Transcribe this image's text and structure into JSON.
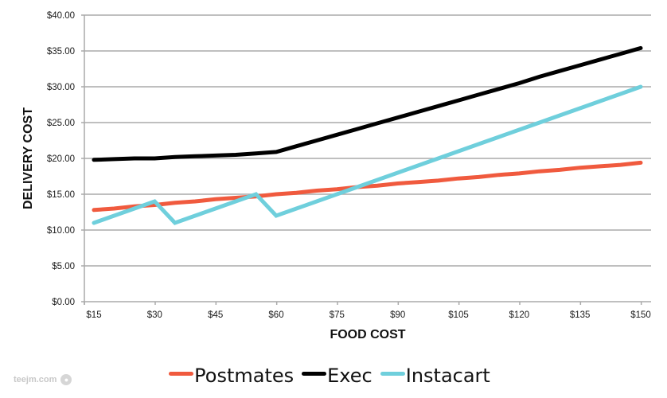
{
  "chart_data": {
    "type": "line",
    "title": "",
    "xlabel": "FOOD COST",
    "ylabel": "DELIVERY COST",
    "x": [
      15,
      20,
      25,
      30,
      35,
      40,
      45,
      50,
      55,
      60,
      65,
      70,
      75,
      80,
      85,
      90,
      95,
      100,
      105,
      110,
      115,
      120,
      125,
      130,
      135,
      140,
      145,
      150
    ],
    "x_ticks": [
      15,
      30,
      45,
      60,
      75,
      90,
      105,
      120,
      135,
      150
    ],
    "x_tick_labels": [
      "$15",
      "$30",
      "$45",
      "$60",
      "$75",
      "$90",
      "$105",
      "$120",
      "$135",
      "$150"
    ],
    "y_ticks": [
      0,
      5,
      10,
      15,
      20,
      25,
      30,
      35,
      40
    ],
    "y_tick_labels": [
      "$0.00",
      "$5.00",
      "$10.00",
      "$15.00",
      "$20.00",
      "$25.00",
      "$30.00",
      "$35.00",
      "$40.00"
    ],
    "xlim": [
      15,
      150
    ],
    "ylim": [
      0,
      40
    ],
    "grid": "horizontal",
    "legend_position": "bottom-center",
    "series": [
      {
        "name": "Postmates",
        "color": "#f05a3e",
        "values": [
          12.8,
          13.0,
          13.3,
          13.5,
          13.8,
          14.0,
          14.3,
          14.5,
          14.7,
          15.0,
          15.2,
          15.5,
          15.7,
          16.0,
          16.2,
          16.5,
          16.7,
          16.9,
          17.2,
          17.4,
          17.7,
          17.9,
          18.2,
          18.4,
          18.7,
          18.9,
          19.1,
          19.4
        ]
      },
      {
        "name": "Exec",
        "color": "#000000",
        "values": [
          19.8,
          19.9,
          20.0,
          20.0,
          20.2,
          20.3,
          20.4,
          20.5,
          20.7,
          20.9,
          21.7,
          22.5,
          23.3,
          24.1,
          24.9,
          25.7,
          26.5,
          27.3,
          28.1,
          28.9,
          29.7,
          30.5,
          31.4,
          32.2,
          33.0,
          33.8,
          34.6,
          35.4
        ]
      },
      {
        "name": "Instacart",
        "color": "#6fcfdc",
        "values": [
          11,
          12,
          13,
          14,
          11,
          12,
          13,
          14,
          15,
          12,
          13,
          14,
          15,
          16,
          17,
          18,
          19,
          20,
          21,
          22,
          23,
          24,
          25,
          26,
          27,
          28,
          29,
          30
        ]
      }
    ]
  },
  "watermark": {
    "text": "teejm.com",
    "icon": "logo-icon"
  }
}
